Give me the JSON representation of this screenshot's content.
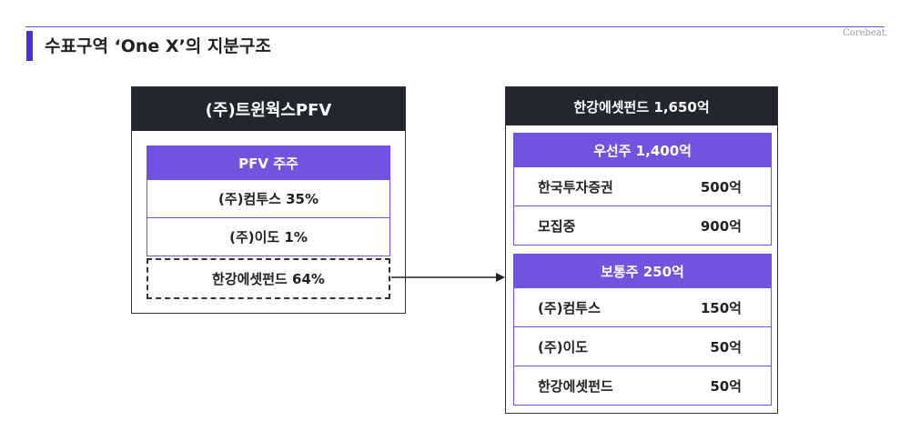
{
  "title": "수표구역 ‘One X’의 지분구조",
  "brand": "Corebeat.",
  "left": {
    "header": "(주)트윈웍스PFV",
    "table_header": "PFV 주주",
    "rows": [
      "(주)컴투스 35%",
      "(주)이도 1%"
    ],
    "highlight_row": "한강에셋펀드 64%"
  },
  "right": {
    "header": "한강에셋펀드 1,650억",
    "preferred": {
      "header": "우선주 1,400억",
      "rows": [
        {
          "name": "한국투자증권",
          "amount": "500억"
        },
        {
          "name": "모집중",
          "amount": "900억"
        }
      ]
    },
    "common": {
      "header": "보통주 250억",
      "rows": [
        {
          "name": "(주)컴투스",
          "amount": "150억"
        },
        {
          "name": "(주)이도",
          "amount": "50억"
        },
        {
          "name": "한강에셋펀드",
          "amount": "50억"
        }
      ]
    }
  },
  "colors": {
    "accent": "#4b2fd9",
    "purple": "#7452e0",
    "dark": "#222630"
  }
}
